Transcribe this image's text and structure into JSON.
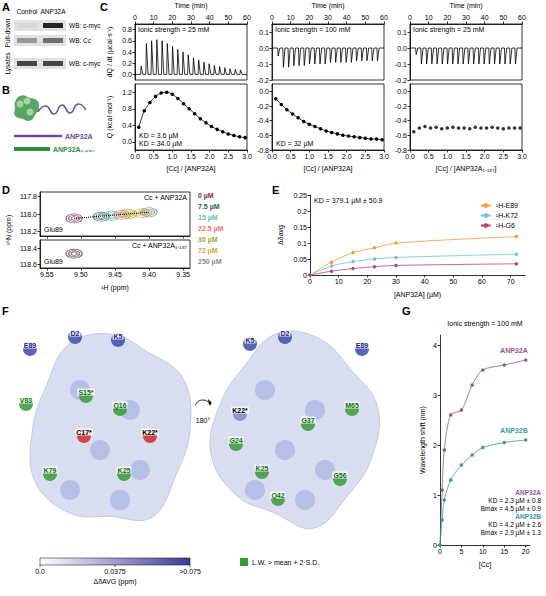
{
  "blot": {
    "letter": "A",
    "columns": [
      "Control",
      "ANP32A"
    ],
    "rows": [
      {
        "group": "Pull-down",
        "label": "WB: c-myc",
        "band_intensity": [
          0.05,
          0.9
        ]
      },
      {
        "group": "Pull-down",
        "label": "WB: Cc",
        "band_intensity": [
          0.35,
          0.55
        ]
      },
      {
        "group": "Lysates",
        "label": "WB: c-myc",
        "band_intensity": [
          0.75,
          0.75
        ]
      }
    ]
  },
  "schematic": {
    "letter": "B",
    "constructs": [
      {
        "name": "ANP32A",
        "color": "#6b4c9a"
      },
      {
        "name": "ANP32A₁₋₁₈₇",
        "color": "#2f8f3f"
      }
    ]
  },
  "chart_data": [
    {
      "letter": "C",
      "type": "line",
      "title": "Ionic strength = 25 mM",
      "x_label": "Time (min)",
      "y_label": "dQ / dt (µcal·s⁻¹)",
      "color": "#000000",
      "x": [
        0,
        3,
        3.3,
        4.2,
        5.8,
        6.1,
        7,
        8.6,
        8.9,
        9.8,
        11.4,
        11.7,
        12.6,
        14.2,
        14.5,
        15.4,
        17,
        17.3,
        18.2,
        19.8,
        20.1,
        21,
        22.6,
        22.9,
        23.8,
        25.4,
        25.7,
        26.6,
        28.2,
        28.5,
        29.4,
        31,
        31.3,
        32.2,
        33.8,
        34.1,
        35,
        36.6,
        36.9,
        37.8,
        39.4,
        39.7,
        40.6,
        42.2,
        42.5,
        43.4,
        45,
        45.3,
        46.2,
        47.8,
        48.1,
        49,
        50.6,
        50.9,
        51.8,
        53.4,
        53.7,
        54.6,
        56.2,
        56.5,
        57.4,
        60
      ],
      "values": [
        0,
        0,
        0.15,
        0,
        0,
        0.55,
        0,
        0,
        0.6,
        0,
        0,
        0.62,
        0,
        0,
        0.6,
        0,
        0,
        0.55,
        0,
        0,
        0.5,
        0,
        0,
        0.45,
        0,
        0,
        0.4,
        0,
        0,
        0.35,
        0,
        0,
        0.3,
        0,
        0,
        0.26,
        0,
        0,
        0.22,
        0,
        0,
        0.19,
        0,
        0,
        0.16,
        0,
        0,
        0.14,
        0,
        0,
        0.12,
        0,
        0,
        0.1,
        0,
        0,
        0.09,
        0,
        0,
        0.08,
        0,
        0
      ],
      "xlim": [
        0,
        60
      ],
      "xticks": [
        0,
        10,
        20,
        30,
        40,
        50,
        60
      ],
      "ylim": [
        -0.1,
        0.9
      ],
      "yticks": [
        {
          "value": 0,
          "label": "0.0"
        },
        0.2,
        0.4,
        0.6,
        0.8
      ]
    },
    {
      "type": "line",
      "marker": "circle",
      "x_label": "[Cc] / [ANP32A]",
      "y_label": "Q (kcal·mol⁻¹)",
      "annotations": [
        "KD = 3.6 µM",
        "KD = 34.0 µM"
      ],
      "color": "#000000",
      "x": [
        0.1,
        0.25,
        0.4,
        0.55,
        0.7,
        0.85,
        1,
        1.15,
        1.3,
        1.45,
        1.6,
        1.75,
        1.9,
        2.05,
        2.2,
        2.35,
        2.5,
        2.65,
        2.8,
        2.95
      ],
      "values": [
        0.35,
        0.75,
        0.95,
        1.1,
        1.18,
        1.2,
        1.15,
        1.05,
        0.92,
        0.8,
        0.68,
        0.56,
        0.46,
        0.37,
        0.3,
        0.24,
        0.19,
        0.15,
        0.12,
        0.1
      ],
      "xlim": [
        0,
        3
      ],
      "xticks": [
        {
          "value": 0,
          "label": "0.0"
        },
        0.5,
        {
          "value": 1,
          "label": "1.0"
        },
        1.5,
        {
          "value": 2,
          "label": "2.0"
        },
        2.5,
        {
          "value": 3,
          "label": "3.0"
        }
      ],
      "ylim": [
        -0.2,
        1.4
      ],
      "yticks": [
        {
          "value": 0,
          "label": "0.0"
        },
        0.4,
        0.8,
        1.2
      ]
    },
    {
      "type": "line",
      "title": "Ionic strength = 100 mM",
      "x_label": "Time (min)",
      "color": "#000000",
      "x": [
        0,
        3,
        3.3,
        4.2,
        5.8,
        6.1,
        7,
        8.6,
        8.9,
        9.8,
        11.4,
        11.7,
        12.6,
        14.2,
        14.5,
        15.4,
        17,
        17.3,
        18.2,
        19.8,
        20.1,
        21,
        22.6,
        22.9,
        23.8,
        25.4,
        25.7,
        26.6,
        28.2,
        28.5,
        29.4,
        31,
        31.3,
        32.2,
        33.8,
        34.1,
        35,
        36.6,
        36.9,
        37.8,
        39.4,
        39.7,
        40.6,
        42.2,
        42.5,
        43.4,
        45,
        45.3,
        46.2,
        47.8,
        48.1,
        49,
        50.6,
        50.9,
        51.8,
        53.4,
        53.7,
        54.6,
        56.2,
        56.5,
        57.4,
        60
      ],
      "values": [
        0,
        0,
        -0.05,
        0,
        0,
        -0.12,
        0,
        0,
        -0.12,
        0,
        0,
        -0.11,
        0,
        0,
        -0.11,
        0,
        0,
        -0.11,
        0,
        0,
        -0.1,
        0,
        0,
        -0.1,
        0,
        0,
        -0.1,
        0,
        0,
        -0.1,
        0,
        0,
        -0.09,
        0,
        0,
        -0.09,
        0,
        0,
        -0.09,
        0,
        0,
        -0.09,
        0,
        0,
        -0.09,
        0,
        0,
        -0.08,
        0,
        0,
        -0.08,
        0,
        0,
        -0.08,
        0,
        0,
        -0.08,
        0,
        0,
        -0.08,
        0,
        0
      ],
      "xlim": [
        0,
        60
      ],
      "xticks": [
        0,
        10,
        20,
        30,
        40,
        50,
        60
      ],
      "ylim": [
        -0.2,
        0.15
      ],
      "yticks": [
        -0.2,
        -0.1,
        {
          "value": 0,
          "label": "0.0"
        },
        0.1
      ]
    },
    {
      "type": "line",
      "marker": "circle",
      "x_label": "[Cc] / [ANP32A]",
      "annotations": [
        "KD = 32 µM"
      ],
      "color": "#000000",
      "x": [
        0.1,
        0.25,
        0.4,
        0.55,
        0.7,
        0.85,
        1,
        1.15,
        1.3,
        1.45,
        1.6,
        1.75,
        1.9,
        2.05,
        2.2,
        2.35,
        2.5,
        2.65,
        2.8,
        2.95
      ],
      "values": [
        -0.1,
        -0.18,
        -0.25,
        -0.31,
        -0.36,
        -0.41,
        -0.45,
        -0.48,
        -0.51,
        -0.54,
        -0.56,
        -0.58,
        -0.6,
        -0.61,
        -0.62,
        -0.63,
        -0.64,
        -0.65,
        -0.65,
        -0.66
      ],
      "xlim": [
        0,
        3
      ],
      "xticks": [
        {
          "value": 0,
          "label": "0.0"
        },
        0.5,
        {
          "value": 1,
          "label": "1.0"
        },
        1.5,
        {
          "value": 2,
          "label": "2.0"
        },
        2.5,
        {
          "value": 3,
          "label": "3.0"
        }
      ],
      "ylim": [
        -0.8,
        0.1
      ],
      "yticks": [
        -0.8,
        -0.6,
        -0.4,
        -0.2,
        {
          "value": 0,
          "label": "0.0"
        }
      ]
    },
    {
      "type": "line",
      "title": "Ionic strength = 25 mM",
      "x_label": "Time (min)",
      "color": "#000000",
      "x": [
        0,
        3,
        3.3,
        4.2,
        5.8,
        6.1,
        7,
        8.6,
        8.9,
        9.8,
        11.4,
        11.7,
        12.6,
        14.2,
        14.5,
        15.4,
        17,
        17.3,
        18.2,
        19.8,
        20.1,
        21,
        22.6,
        22.9,
        23.8,
        25.4,
        25.7,
        26.6,
        28.2,
        28.5,
        29.4,
        31,
        31.3,
        32.2,
        33.8,
        34.1,
        35,
        36.6,
        36.9,
        37.8,
        39.4,
        39.7,
        40.6,
        42.2,
        42.5,
        43.4,
        45,
        45.3,
        46.2,
        47.8,
        48.1,
        49,
        50.6,
        50.9,
        51.8,
        53.4,
        53.7,
        54.6,
        56.2,
        56.5,
        57.4,
        60
      ],
      "values": [
        0,
        0,
        -0.04,
        0,
        0,
        -0.1,
        0,
        0,
        -0.1,
        0,
        0,
        -0.1,
        0,
        0,
        -0.1,
        0,
        0,
        -0.1,
        0,
        0,
        -0.1,
        0,
        0,
        -0.1,
        0,
        0,
        -0.1,
        0,
        0,
        -0.1,
        0,
        0,
        -0.1,
        0,
        0,
        -0.1,
        0,
        0,
        -0.1,
        0,
        0,
        -0.1,
        0,
        0,
        -0.1,
        0,
        0,
        -0.1,
        0,
        0,
        -0.1,
        0,
        0,
        -0.1,
        0,
        0,
        -0.1,
        0,
        0,
        -0.1,
        0,
        0
      ],
      "xlim": [
        0,
        60
      ],
      "xticks": [
        0,
        10,
        20,
        30,
        40,
        50,
        60
      ],
      "ylim": [
        -0.2,
        0.15
      ],
      "yticks": [
        -0.2,
        -0.1,
        {
          "value": 0,
          "label": "0.0"
        },
        0.1
      ]
    },
    {
      "type": "scatter",
      "marker": "circle",
      "x_label": "[Cc] / [ANP32A₁₋₁₈₇]",
      "color": "#000000",
      "x": [
        0.1,
        0.25,
        0.4,
        0.55,
        0.7,
        0.85,
        1,
        1.15,
        1.3,
        1.45,
        1.6,
        1.75,
        1.9,
        2.05,
        2.2,
        2.35,
        2.5,
        2.65,
        2.8,
        2.95
      ],
      "values": [
        -0.55,
        -0.5,
        -0.48,
        -0.5,
        -0.49,
        -0.51,
        -0.5,
        -0.49,
        -0.5,
        -0.5,
        -0.51,
        -0.49,
        -0.5,
        -0.5,
        -0.49,
        -0.5,
        -0.51,
        -0.5,
        -0.5,
        -0.5
      ],
      "xlim": [
        0,
        3
      ],
      "xticks": [
        {
          "value": 0,
          "label": "0.0"
        },
        0.5,
        {
          "value": 1,
          "label": "1.0"
        },
        1.5,
        {
          "value": 2,
          "label": "2.0"
        },
        2.5,
        {
          "value": 3,
          "label": "3.0"
        }
      ],
      "ylim": [
        -0.8,
        0.1
      ],
      "yticks": [
        -0.8,
        -0.6,
        -0.4,
        -0.2,
        {
          "value": 0,
          "label": "0.0"
        }
      ]
    },
    {
      "letter": "D",
      "type": "scatter",
      "marker": "contour",
      "title": "Cc + ANP32A",
      "annotations": [
        "Glu89"
      ],
      "y_label": "¹⁵N (ppm)",
      "legend": "right",
      "tick_labels": "y",
      "series": [
        {
          "name": "0 µM",
          "color": "#6d2a5a",
          "x": [
            9.51
          ],
          "values": [
            118.05
          ]
        },
        {
          "name": "7.5 µM",
          "color": "#1d5e4c",
          "x": [
            9.47
          ],
          "values": [
            118.03
          ]
        },
        {
          "name": "15 µM",
          "color": "#5fbdb6",
          "x": [
            9.455
          ],
          "values": [
            118.02
          ]
        },
        {
          "name": "22.5 µM",
          "color": "#ef7070",
          "x": [
            9.44
          ],
          "values": [
            118.01
          ]
        },
        {
          "name": "30 µM",
          "color": "#a6a329",
          "x": [
            9.43
          ],
          "values": [
            118
          ]
        },
        {
          "name": "72 µM",
          "color": "#d8a83a",
          "x": [
            9.41
          ],
          "values": [
            117.99
          ]
        },
        {
          "name": "250 µM",
          "color": "#8c8c8c",
          "x": [
            9.4
          ],
          "values": [
            117.98
          ]
        }
      ],
      "xlim": [
        9.56,
        9.34
      ],
      "xticks": [
        9.55,
        {
          "value": 9.5,
          "label": "9.50"
        },
        9.45,
        {
          "value": 9.4,
          "label": "9.40"
        },
        9.35
      ],
      "ylim": [
        118.25,
        117.75
      ],
      "yticks": [
        117.8,
        {
          "value": 118,
          "label": "118.0"
        },
        118.2
      ]
    },
    {
      "type": "scatter",
      "marker": "contour",
      "title": "Cc + ANP32A₁₋₁₈₇",
      "annotations": [
        "Glu89"
      ],
      "x_label": "¹H (ppm)",
      "series": [
        {
          "name": "0 µM",
          "color": "#6d2a5a",
          "x": [
            9.51
          ],
          "values": [
            118.47
          ]
        },
        {
          "name": "250 µM",
          "color": "#8c8c8c",
          "x": [
            9.51
          ],
          "values": [
            118.47
          ]
        }
      ],
      "xlim": [
        9.56,
        9.34
      ],
      "xticks": [
        9.55,
        {
          "value": 9.5,
          "label": "9.50"
        },
        9.45,
        {
          "value": 9.4,
          "label": "9.40"
        },
        9.35
      ],
      "ylim": [
        118.65,
        118.3
      ],
      "yticks": [
        118.4,
        118.6
      ]
    },
    {
      "letter": "E",
      "type": "line",
      "marker": "circle",
      "annotations": [
        "KD = 379.1 µM ± 50.9"
      ],
      "x_label": "[ANP32A] (µM)",
      "y_label": "Δδavg",
      "legend": "upper right",
      "x": [
        0,
        7.5,
        15,
        22.5,
        30,
        72
      ],
      "series": [
        {
          "name": "¹H-E89",
          "color": "#f39c3c",
          "values": [
            0,
            0.04,
            0.07,
            0.085,
            0.1,
            0.12
          ]
        },
        {
          "name": "¹H-K72",
          "color": "#6ec1ea",
          "values": [
            0,
            0.028,
            0.042,
            0.05,
            0.055,
            0.065
          ]
        },
        {
          "name": "¹H-G6",
          "color": "#b04a6e",
          "values": [
            0,
            0.012,
            0.02,
            0.026,
            0.03,
            0.035
          ]
        }
      ],
      "xlim": [
        0,
        75
      ],
      "xticks": [
        0,
        10,
        20,
        30,
        40,
        50,
        60,
        70
      ],
      "ylim": [
        0,
        0.25
      ],
      "yticks": [
        0,
        0.05,
        0.1,
        0.15,
        0.2,
        0.25
      ]
    },
    {
      "letter": "G",
      "type": "line",
      "marker": "circle",
      "title": "Ionic strength = 100 mM",
      "x_label": "[Cc]",
      "y_label": "Wavelength shift (nm)",
      "x": [
        0,
        0.5,
        1,
        2.5,
        5,
        7.5,
        10,
        15,
        20
      ],
      "series": [
        {
          "name": "ANP32A",
          "color": "#8b5a8c",
          "values": [
            0,
            1.1,
            1.9,
            2.6,
            2.7,
            3.2,
            3.5,
            3.6,
            3.7
          ],
          "annotations": [
            "KD = 2.3 µM ± 0.8",
            "Bmax = 4.5 µM ± 0.9"
          ]
        },
        {
          "name": "ANP32B",
          "color": "#3a9a9a",
          "values": [
            0,
            0.5,
            0.9,
            1.3,
            1.6,
            1.8,
            1.95,
            2.05,
            2.1
          ],
          "annotations": [
            "KD = 4.2 µM ± 2.6",
            "Bmax = 2.9 µM ± 1.3"
          ]
        }
      ],
      "xlim": [
        0,
        21
      ],
      "xticks": [
        0,
        5,
        10,
        15,
        20
      ],
      "ylim": [
        0,
        4.2
      ],
      "yticks": [
        0,
        1,
        2,
        3,
        4
      ]
    }
  ],
  "surface": {
    "letter": "F",
    "rotation": "180°",
    "views": [
      {
        "labels": [
          {
            "text": "E89",
            "kind": "shift"
          },
          {
            "text": "D2",
            "kind": "shift"
          },
          {
            "text": "K5",
            "kind": "shift"
          },
          {
            "text": "V83",
            "kind": "linewidth"
          },
          {
            "text": "S15*",
            "kind": "linewidth"
          },
          {
            "text": "Q16",
            "kind": "linewidth"
          },
          {
            "text": "K22*",
            "kind": "heme"
          },
          {
            "text": "C17*",
            "kind": "heme"
          },
          {
            "text": "K25",
            "kind": "linewidth"
          },
          {
            "text": "K79",
            "kind": "linewidth"
          }
        ]
      },
      {
        "labels": [
          {
            "text": "K5",
            "kind": "shift"
          },
          {
            "text": "D2",
            "kind": "shift"
          },
          {
            "text": "E89",
            "kind": "shift"
          },
          {
            "text": "K22*",
            "kind": "other"
          },
          {
            "text": "M65",
            "kind": "linewidth"
          },
          {
            "text": "G24",
            "kind": "linewidth"
          },
          {
            "text": "G37",
            "kind": "linewidth"
          },
          {
            "text": "K25",
            "kind": "linewidth"
          },
          {
            "text": "Q42",
            "kind": "linewidth"
          },
          {
            "text": "G56",
            "kind": "linewidth"
          }
        ]
      }
    ],
    "colorbar": {
      "title": "ΔδAVG (ppm)",
      "range": [
        0,
        0.075
      ],
      "ticks": [
        {
          "value": 0,
          "label": "0.0"
        },
        0.0375,
        {
          "value": 0.075,
          "label": ">0.075"
        }
      ],
      "colors": [
        "#ffffff",
        "#3b3b9a"
      ]
    },
    "legend_label": "L.W. > mean + 2·S.D.",
    "legend_color": "#3a9a3a"
  }
}
